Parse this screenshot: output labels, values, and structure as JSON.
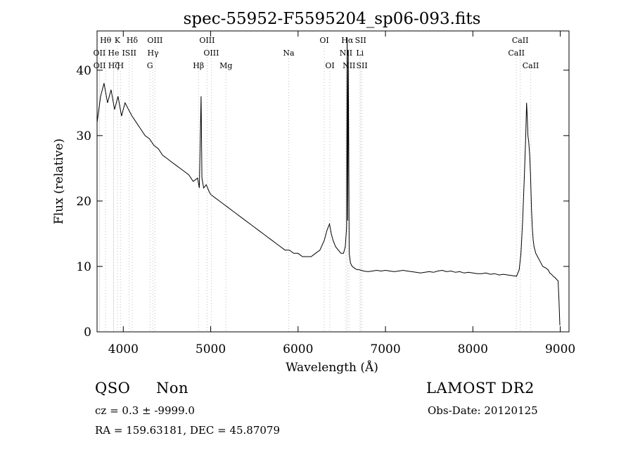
{
  "chart_data": {
    "type": "line",
    "title": "spec-55952-F5595204_sp06-093.fits",
    "xlabel": "Wavelength (Å)",
    "ylabel": "Flux (relative)",
    "xlim": [
      3700,
      9100
    ],
    "ylim": [
      0,
      46
    ],
    "xticks": [
      4000,
      5000,
      6000,
      7000,
      8000,
      9000
    ],
    "yticks": [
      0,
      10,
      20,
      30,
      40
    ],
    "grid": false,
    "series": [
      {
        "values_note_omitted": "",
        "x": [
          3700,
          3740,
          3780,
          3820,
          3860,
          3900,
          3940,
          3980,
          4020,
          4060,
          4100,
          4150,
          4200,
          4250,
          4300,
          4350,
          4400,
          4450,
          4500,
          4550,
          4600,
          4650,
          4700,
          4750,
          4800,
          4850,
          4870,
          4890,
          4900,
          4920,
          4950,
          4980,
          5000,
          5050,
          5100,
          5150,
          5200,
          5250,
          5300,
          5350,
          5400,
          5450,
          5500,
          5550,
          5600,
          5650,
          5700,
          5750,
          5800,
          5850,
          5900,
          5950,
          6000,
          6050,
          6100,
          6150,
          6200,
          6250,
          6300,
          6330,
          6360,
          6380,
          6400,
          6430,
          6460,
          6490,
          6520,
          6540,
          6555,
          6562,
          6568,
          6575,
          6585,
          6600,
          6620,
          6640,
          6660,
          6680,
          6700,
          6750,
          6800,
          6850,
          6900,
          6950,
          7000,
          7050,
          7100,
          7150,
          7200,
          7250,
          7300,
          7350,
          7400,
          7450,
          7500,
          7550,
          7600,
          7650,
          7700,
          7750,
          7800,
          7850,
          7900,
          7950,
          8000,
          8050,
          8100,
          8150,
          8200,
          8250,
          8300,
          8350,
          8400,
          8450,
          8500,
          8530,
          8550,
          8570,
          8590,
          8605,
          8615,
          8622,
          8630,
          8640,
          8650,
          8660,
          8670,
          8680,
          8690,
          8700,
          8720,
          8740,
          8760,
          8780,
          8800,
          8830,
          8860,
          8880,
          8900,
          8920,
          8940,
          8960,
          8975,
          8985,
          8995
        ],
        "y": [
          32,
          36,
          38,
          35,
          37,
          34,
          36,
          33,
          35,
          34,
          33,
          32,
          31,
          30,
          29.5,
          28.5,
          28,
          27,
          26.5,
          26,
          25.5,
          25,
          24.5,
          24,
          23,
          23.5,
          22,
          36,
          23.5,
          22,
          22.5,
          21.5,
          21,
          20.5,
          20,
          19.5,
          19,
          18.5,
          18,
          17.5,
          17,
          16.5,
          16,
          15.5,
          15,
          14.5,
          14,
          13.5,
          13,
          12.5,
          12.5,
          12,
          12,
          11.5,
          11.5,
          11.5,
          12,
          12.5,
          14,
          15.5,
          16.5,
          15,
          14,
          13,
          12.5,
          12,
          12,
          13,
          16,
          45,
          17,
          43,
          12,
          10.5,
          10,
          9.8,
          9.6,
          9.5,
          9.5,
          9.3,
          9.2,
          9.3,
          9.4,
          9.3,
          9.4,
          9.3,
          9.2,
          9.3,
          9.4,
          9.3,
          9.2,
          9.1,
          9.0,
          9.1,
          9.2,
          9.1,
          9.3,
          9.4,
          9.2,
          9.3,
          9.1,
          9.2,
          9.0,
          9.1,
          9.0,
          8.9,
          8.9,
          9.0,
          8.8,
          8.9,
          8.7,
          8.8,
          8.7,
          8.6,
          8.5,
          9.5,
          12,
          17,
          24,
          30,
          35,
          33,
          30,
          29,
          27,
          24,
          19,
          16,
          14,
          13,
          12,
          11.5,
          11,
          10.5,
          10,
          9.8,
          9.5,
          9,
          8.8,
          8.5,
          8.3,
          8,
          7.8,
          5,
          1
        ]
      }
    ],
    "lines": [
      {
        "name": "Hθ",
        "x": 3798,
        "row": 0
      },
      {
        "name": "K",
        "x": 3933,
        "row": 0
      },
      {
        "name": "Hδ",
        "x": 4102,
        "row": 0
      },
      {
        "name": "OIII",
        "x": 4363,
        "row": 0
      },
      {
        "name": "OIII",
        "x": 4959,
        "row": 0
      },
      {
        "name": "OI",
        "x": 6300,
        "row": 0
      },
      {
        "name": "Hα",
        "x": 6563,
        "row": 0
      },
      {
        "name": "SII",
        "x": 6716,
        "row": 0
      },
      {
        "name": "CaII",
        "x": 8542,
        "row": 0
      },
      {
        "name": "OII",
        "x": 3727,
        "row": 1
      },
      {
        "name": "He",
        "x": 3889,
        "row": 1
      },
      {
        "name": "ISII",
        "x": 4068,
        "row": 1
      },
      {
        "name": "Hγ",
        "x": 4340,
        "row": 1
      },
      {
        "name": "OIII",
        "x": 5007,
        "row": 1
      },
      {
        "name": "NII",
        "x": 6548,
        "row": 1
      },
      {
        "name": "Li",
        "x": 6708,
        "row": 1
      },
      {
        "name": "CaII",
        "x": 8498,
        "row": 1
      },
      {
        "name": "OII",
        "x": 3729,
        "row": 2
      },
      {
        "name": "Hζ",
        "x": 3889,
        "row": 2
      },
      {
        "name": "H",
        "x": 3968,
        "row": 2
      },
      {
        "name": "G",
        "x": 4305,
        "row": 2
      },
      {
        "name": "Hβ",
        "x": 4861,
        "row": 2
      },
      {
        "name": "Mg",
        "x": 5175,
        "row": 2
      },
      {
        "name": "Na",
        "x": 5893,
        "row": 1
      },
      {
        "name": "OI",
        "x": 6364,
        "row": 2
      },
      {
        "name": "NII",
        "x": 6583,
        "row": 2
      },
      {
        "name": "SII",
        "x": 6731,
        "row": 2
      },
      {
        "name": "CaII",
        "x": 8662,
        "row": 2
      }
    ]
  },
  "info": {
    "class": "QSO",
    "subclass": "Non",
    "survey": "LAMOST DR2",
    "cz": "cz = 0.3 ± -9999.0",
    "obsdate": "Obs-Date: 20120125",
    "radec": "RA = 159.63181, DEC =  45.87079"
  }
}
